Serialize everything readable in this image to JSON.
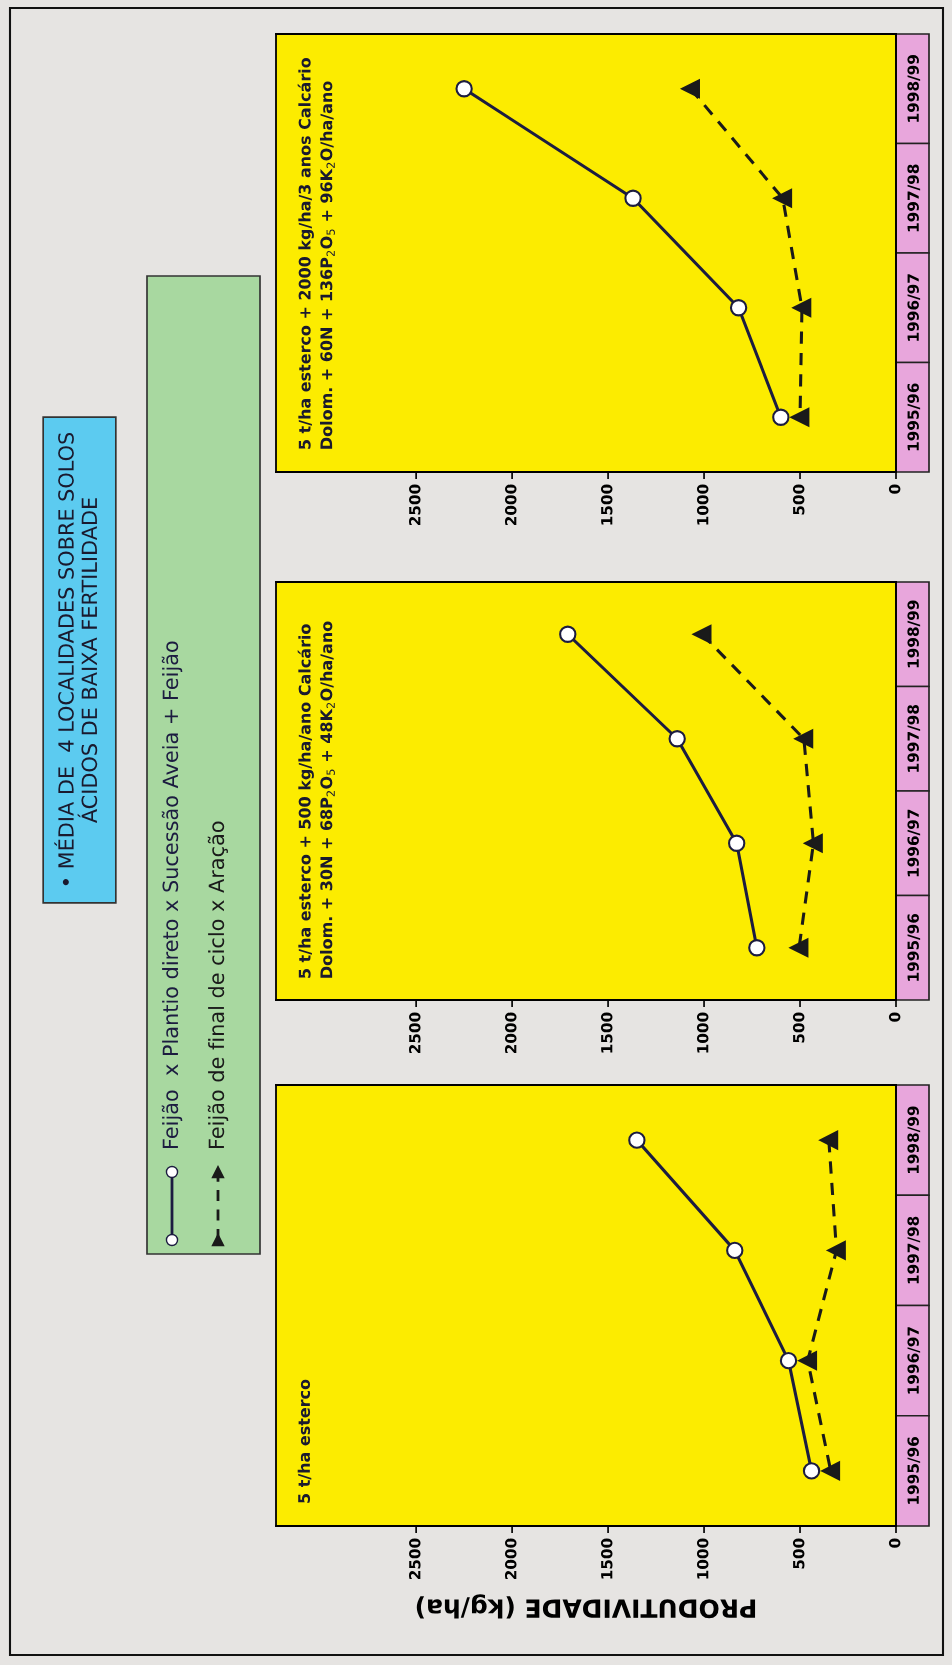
{
  "chart_data": [
    {
      "type": "other",
      "title": "• MÉDIA DE  4 LOCALIDADES SOBRE SOLOS\nÁCIDOS DE BAIXA FERTILIDADE"
    },
    {
      "type": "line",
      "orientation": "horizontal",
      "legend": "left",
      "grid": false,
      "xlabel": "PRODUTIVIDADE (kg/ha)",
      "categories": [
        "1998/99",
        "1997/98",
        "1996/97",
        "1995/96"
      ],
      "xlim": [
        3230,
        0
      ],
      "xticks": [
        0,
        500,
        1000,
        1500,
        2000,
        2500
      ],
      "annotations": [
        "5 t/ha esterco"
      ],
      "series": [
        {
          "name": "Feijão  x Plantio direto x Sucessão Aveia + Feijão",
          "color": "#1c1c40",
          "marker": "circle",
          "line_style": "solid",
          "values": [
            1350,
            840,
            560,
            440
          ]
        },
        {
          "name": "Feijão de final de ciclo x Aração",
          "color": "#1a1a1a",
          "marker": "triangle",
          "line_style": "dashed",
          "values": [
            350,
            310,
            460,
            340
          ]
        }
      ]
    },
    {
      "type": "line",
      "orientation": "horizontal",
      "grid": false,
      "categories": [
        "1998/99",
        "1997/98",
        "1996/97",
        "1995/96"
      ],
      "xlim": [
        3230,
        0
      ],
      "xticks": [
        0,
        500,
        1000,
        1500,
        2000,
        2500
      ],
      "annotations": [
        "5 t/ha esterco + 500 kg/ha/ano Calcário\nDolom. + 30N + 68P$_{2}$O$_{5}$ + 48K$_{2}$O/ha/ano"
      ],
      "series": [
        {
          "color": "#1c1c40",
          "marker": "circle",
          "line_style": "solid",
          "values": [
            1710,
            1140,
            830,
            725
          ]
        },
        {
          "color": "#1a1a1a",
          "marker": "triangle",
          "line_style": "dashed",
          "values": [
            1010,
            480,
            430,
            505
          ]
        }
      ]
    },
    {
      "type": "line",
      "orientation": "horizontal",
      "grid": false,
      "categories": [
        "1998/99",
        "1997/98",
        "1996/97",
        "1995/96"
      ],
      "xlim": [
        3230,
        0
      ],
      "xticks": [
        0,
        500,
        1000,
        1500,
        2000,
        2500
      ],
      "annotations": [
        "5 t/ha esterco + 2000 kg/ha/3 anos Calcário\nDolom. + 60N + 136P$_{2}$O$_{5}$ + 96K$_{2}$O/ha/ano"
      ],
      "series": [
        {
          "color": "#1c1c40",
          "marker": "circle",
          "line_style": "solid",
          "values": [
            2250,
            1370,
            820,
            600
          ]
        },
        {
          "color": "#1a1a1a",
          "marker": "triangle",
          "line_style": "dashed",
          "values": [
            1070,
            590,
            490,
            500
          ]
        }
      ]
    }
  ]
}
